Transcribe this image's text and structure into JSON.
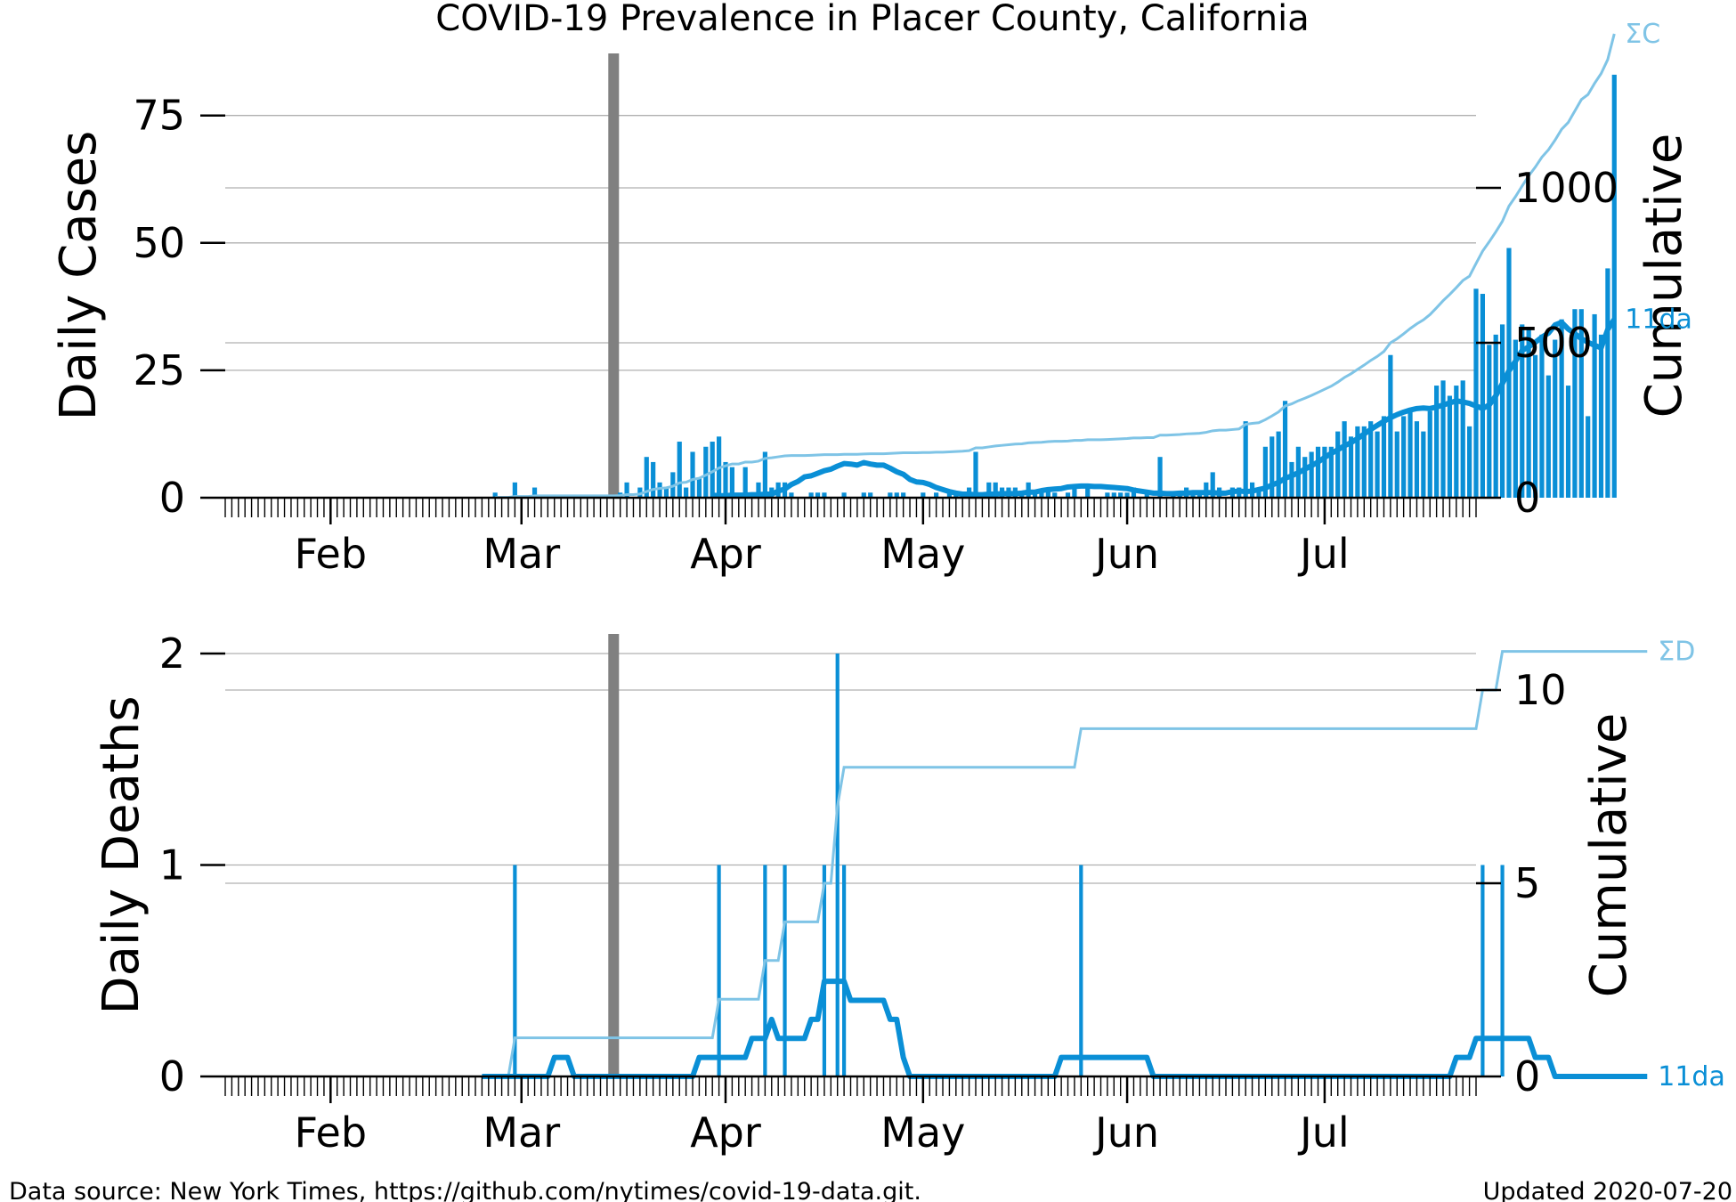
{
  "title": "COVID-19 Prevalence in Placer County, California",
  "footer": {
    "source": "Data source: New York Times, https://github.com/nytimes/covid-19-data.git.",
    "updated": "Updated 2020-07-20"
  },
  "colors": {
    "daily": "#0a8fd6",
    "cumulative": "#7fc4e6",
    "marker": "#808080",
    "grid": "#b0b0b0"
  },
  "chart_data": [
    {
      "type": "bar",
      "ylabel": "Daily Cases",
      "y2label": "Cumulative",
      "series_labels": {
        "cumulative": "ΣC",
        "average": "11da"
      },
      "x_range": [
        "2020-01-16",
        "2020-07-24"
      ],
      "month_ticks": [
        {
          "date": "2020-02-01",
          "label": "Feb"
        },
        {
          "date": "2020-03-01",
          "label": "Mar"
        },
        {
          "date": "2020-04-01",
          "label": "Apr"
        },
        {
          "date": "2020-05-01",
          "label": "May"
        },
        {
          "date": "2020-06-01",
          "label": "Jun"
        },
        {
          "date": "2020-07-01",
          "label": "Jul"
        }
      ],
      "ylim": [
        0,
        85
      ],
      "yticks": [
        0,
        25,
        50,
        75
      ],
      "y2lim": [
        0,
        1398
      ],
      "y2ticks": [
        0,
        500,
        1000
      ],
      "marker_date": "2020-03-15",
      "start_date": "2020-02-26",
      "daily": [
        1,
        0,
        0,
        3,
        0,
        0,
        2,
        0,
        0,
        0,
        0,
        0,
        0,
        0,
        0,
        0,
        0,
        0,
        0,
        1,
        3,
        0,
        2,
        8,
        7,
        3,
        2,
        5,
        11,
        2,
        9,
        4,
        10,
        11,
        12,
        7,
        6,
        0,
        6,
        0,
        3,
        9,
        2,
        3,
        3,
        1,
        0,
        0,
        1,
        1,
        1,
        0,
        0,
        1,
        0,
        0,
        1,
        1,
        0,
        0,
        1,
        1,
        1,
        0,
        0,
        1,
        0,
        1,
        0,
        1,
        1,
        1,
        2,
        9,
        0,
        3,
        3,
        2,
        2,
        2,
        1,
        3,
        1,
        1,
        2,
        1,
        0,
        1,
        2,
        0,
        2,
        0,
        0,
        1,
        1,
        1,
        1,
        2,
        0,
        1,
        0,
        8,
        0,
        1,
        1,
        2,
        1,
        1,
        3,
        5,
        2,
        0,
        2,
        2,
        15,
        3,
        2,
        10,
        12,
        13,
        19,
        7,
        10,
        8,
        9,
        10,
        10,
        10,
        13,
        15,
        12,
        14,
        14,
        15,
        13,
        16,
        28,
        13,
        16,
        17,
        15,
        13,
        17,
        22,
        23,
        20,
        22,
        23,
        14,
        41,
        40,
        30,
        32,
        34,
        49,
        31,
        34,
        33,
        28,
        32,
        24,
        31,
        35,
        22,
        37,
        37,
        16,
        36,
        32,
        45,
        83
      ],
      "average": [
        0.5,
        0.4,
        0.4,
        0.5,
        0.5,
        0.5,
        0.6,
        0.6,
        0.7,
        0.7,
        1.3,
        1.7,
        2.6,
        3.2,
        4.1,
        4.3,
        4.8,
        5.3,
        5.6,
        6.2,
        6.7,
        6.6,
        6.4,
        6.9,
        6.6,
        6.4,
        6.4,
        5.8,
        5.1,
        4.6,
        3.6,
        3.1,
        3.0,
        2.6,
        2.0,
        1.6,
        1.2,
        0.9,
        0.7,
        0.7,
        0.6,
        0.6,
        0.7,
        0.7,
        0.8,
        0.8,
        0.8,
        0.9,
        1.1,
        1.1,
        1.4,
        1.6,
        1.7,
        1.8,
        2.1,
        2.2,
        2.3,
        2.3,
        2.2,
        2.2,
        2.1,
        2.0,
        1.9,
        1.8,
        1.5,
        1.3,
        1.1,
        0.9,
        0.9,
        0.8,
        0.8,
        0.9,
        0.9,
        1.0,
        1.0,
        1.0,
        1.0,
        0.9,
        0.9,
        1.2,
        1.3,
        1.2,
        1.3,
        1.6,
        1.9,
        2.5,
        3.0,
        3.8,
        4.3,
        4.9,
        5.6,
        6.3,
        7.0,
        7.9,
        8.7,
        9.4,
        10.2,
        10.8,
        11.6,
        12.5,
        13.4,
        14.2,
        15.0,
        15.7,
        16.3,
        16.8,
        17.2,
        17.5,
        17.6,
        17.5,
        17.8,
        18.2,
        18.6,
        19.0,
        18.8,
        18.5,
        18.0,
        17.5,
        18.2,
        20.0,
        22.4,
        24.9,
        26.8,
        28.9,
        29.6,
        30.5,
        31.5,
        32.3,
        33.9,
        34.4,
        33.1,
        32.2,
        31.2,
        30.5,
        29.9,
        29.4,
        33.0,
        35.0
      ]
    },
    {
      "type": "line",
      "ylabel": "Daily Deaths",
      "y2label": "Cumulative",
      "series_labels": {
        "cumulative": "ΣD",
        "average": "11da"
      },
      "x_range": [
        "2020-01-16",
        "2020-07-24"
      ],
      "month_ticks": [
        {
          "date": "2020-02-01",
          "label": "Feb"
        },
        {
          "date": "2020-03-01",
          "label": "Mar"
        },
        {
          "date": "2020-04-01",
          "label": "Apr"
        },
        {
          "date": "2020-05-01",
          "label": "May"
        },
        {
          "date": "2020-06-01",
          "label": "Jun"
        },
        {
          "date": "2020-07-01",
          "label": "Jul"
        }
      ],
      "ylim": [
        0,
        2.1
      ],
      "yticks": [
        0,
        1,
        2
      ],
      "y2lim": [
        0,
        11.5
      ],
      "y2ticks": [
        0,
        5,
        10
      ],
      "marker_date": "2020-03-15",
      "start_date": "2020-02-26",
      "daily": [
        0,
        0,
        0,
        1,
        0,
        0,
        0,
        0,
        0,
        0,
        0,
        0,
        0,
        0,
        0,
        0,
        0,
        0,
        0,
        0,
        0,
        0,
        0,
        0,
        0,
        0,
        0,
        0,
        0,
        0,
        0,
        0,
        0,
        0,
        1,
        0,
        0,
        0,
        0,
        0,
        0,
        1,
        0,
        0,
        1,
        0,
        0,
        0,
        0,
        0,
        1,
        0,
        2,
        1,
        0,
        0,
        0,
        0,
        0,
        0,
        0,
        0,
        0,
        0,
        0,
        0,
        0,
        0,
        0,
        0,
        0,
        0,
        0,
        0,
        0,
        0,
        0,
        0,
        0,
        0,
        0,
        0,
        0,
        0,
        0,
        0,
        0,
        0,
        0,
        1,
        0,
        0,
        0,
        0,
        0,
        0,
        0,
        0,
        0,
        0,
        0,
        0,
        0,
        0,
        0,
        0,
        0,
        0,
        0,
        0,
        0,
        0,
        0,
        0,
        0,
        0,
        0,
        0,
        0,
        0,
        0,
        0,
        0,
        0,
        0,
        0,
        0,
        0,
        0,
        0,
        0,
        0,
        0,
        0,
        0,
        0,
        0,
        0,
        0,
        0,
        0,
        0,
        0,
        0,
        0,
        0,
        0,
        0,
        0,
        0,
        1,
        0,
        0,
        1,
        0,
        0,
        0,
        0,
        0,
        0,
        0,
        0,
        0,
        0,
        0,
        0,
        0,
        0,
        0,
        0,
        0,
        0,
        0,
        0,
        0,
        0
      ],
      "average": [
        0,
        0,
        0,
        0,
        0,
        0,
        0,
        0,
        0,
        0,
        0,
        0.09,
        0.09,
        0.09,
        0,
        0,
        0,
        0,
        0,
        0,
        0,
        0,
        0,
        0,
        0,
        0,
        0,
        0,
        0,
        0,
        0,
        0,
        0,
        0.09,
        0.09,
        0.09,
        0.09,
        0.09,
        0.09,
        0.09,
        0.09,
        0.18,
        0.18,
        0.18,
        0.27,
        0.18,
        0.18,
        0.18,
        0.18,
        0.18,
        0.27,
        0.27,
        0.45,
        0.45,
        0.45,
        0.45,
        0.36,
        0.36,
        0.36,
        0.36,
        0.36,
        0.36,
        0.27,
        0.27,
        0.09,
        0,
        0,
        0,
        0,
        0,
        0,
        0,
        0,
        0,
        0,
        0,
        0,
        0,
        0,
        0,
        0,
        0,
        0,
        0,
        0,
        0,
        0,
        0,
        0.09,
        0.09,
        0.09,
        0.09,
        0.09,
        0.09,
        0.09,
        0.09,
        0.09,
        0.09,
        0.09,
        0.09,
        0.09,
        0.09,
        0,
        0,
        0,
        0,
        0,
        0,
        0,
        0,
        0,
        0,
        0,
        0,
        0,
        0,
        0,
        0,
        0,
        0,
        0,
        0,
        0,
        0,
        0,
        0,
        0,
        0,
        0,
        0,
        0,
        0,
        0,
        0,
        0,
        0,
        0,
        0,
        0,
        0,
        0,
        0,
        0,
        0,
        0,
        0,
        0,
        0,
        0.09,
        0.09,
        0.09,
        0.18,
        0.18,
        0.18,
        0.18,
        0.18,
        0.18,
        0.18,
        0.18,
        0.18,
        0.09,
        0.09,
        0.09,
        0,
        0,
        0,
        0,
        0,
        0,
        0,
        0,
        0,
        0,
        0,
        0,
        0,
        0,
        0
      ]
    }
  ]
}
